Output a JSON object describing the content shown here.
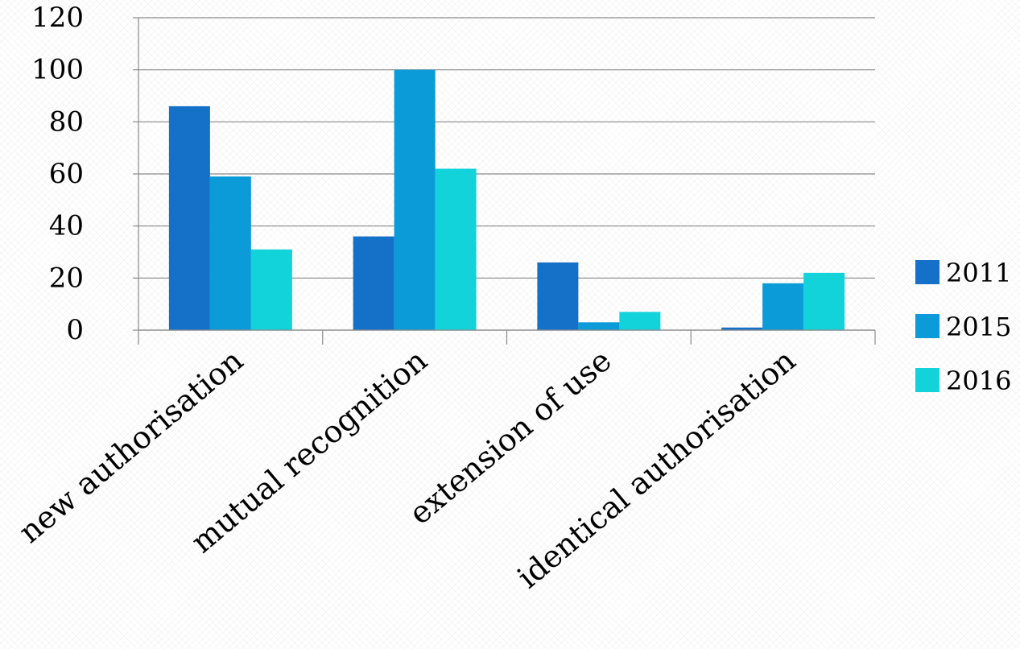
{
  "chart_data": {
    "type": "bar",
    "title": "",
    "xlabel": "",
    "ylabel": "",
    "categories": [
      "new authorisation",
      "mutual recognition",
      "extension of use",
      "identical authorisation"
    ],
    "series": [
      {
        "name": "2011",
        "values": [
          86,
          36,
          26,
          1
        ],
        "color": "#1570c8"
      },
      {
        "name": "2015",
        "values": [
          59,
          100,
          3,
          18
        ],
        "color": "#0a9bd8"
      },
      {
        "name": "2016",
        "values": [
          31,
          62,
          7,
          22
        ],
        "color": "#12d2da"
      }
    ],
    "ylim": [
      0,
      120
    ],
    "yticks": [
      "0",
      "20",
      "40",
      "60",
      "80",
      "100",
      "120"
    ],
    "grid": true,
    "legend_position": "right"
  }
}
